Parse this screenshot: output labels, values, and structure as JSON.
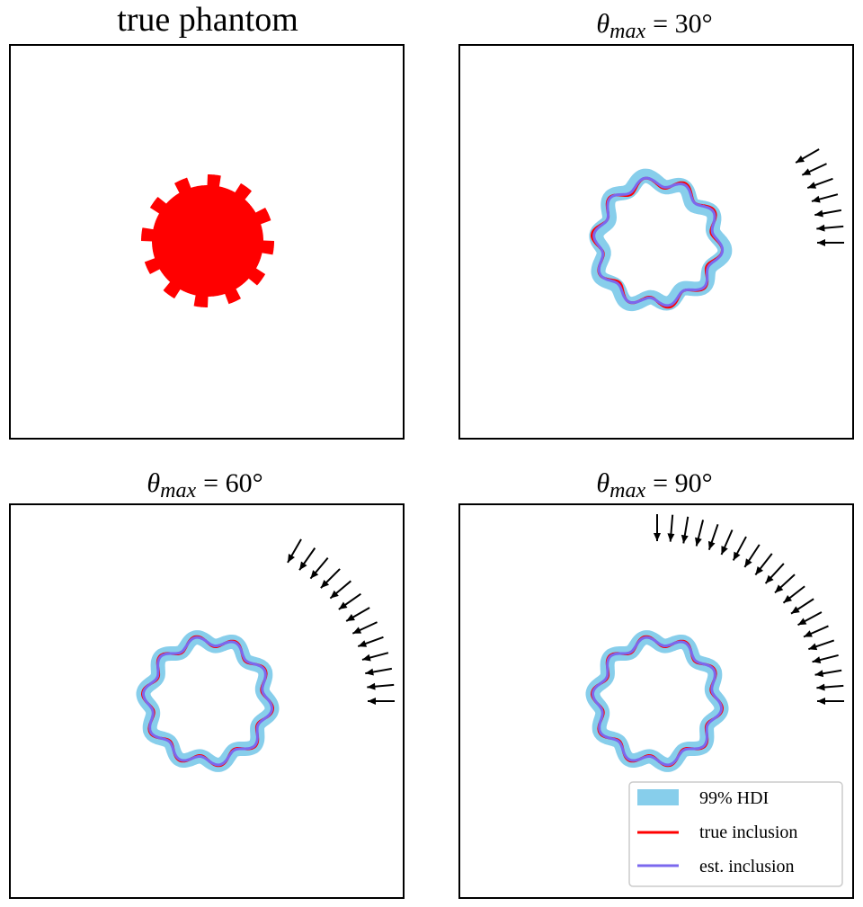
{
  "panels": [
    {
      "title": {
        "text": "true phantom"
      }
    },
    {
      "title": {
        "symbol": "θ",
        "sub": "max",
        "rest": "= 30°"
      }
    },
    {
      "title": {
        "symbol": "θ",
        "sub": "max",
        "rest": "= 60°"
      }
    },
    {
      "title": {
        "symbol": "θ",
        "sub": "max",
        "rest": "= 90°"
      }
    }
  ],
  "legend": {
    "entries": [
      "99% HDI",
      "true inclusion",
      "est. inclusion"
    ]
  }
}
